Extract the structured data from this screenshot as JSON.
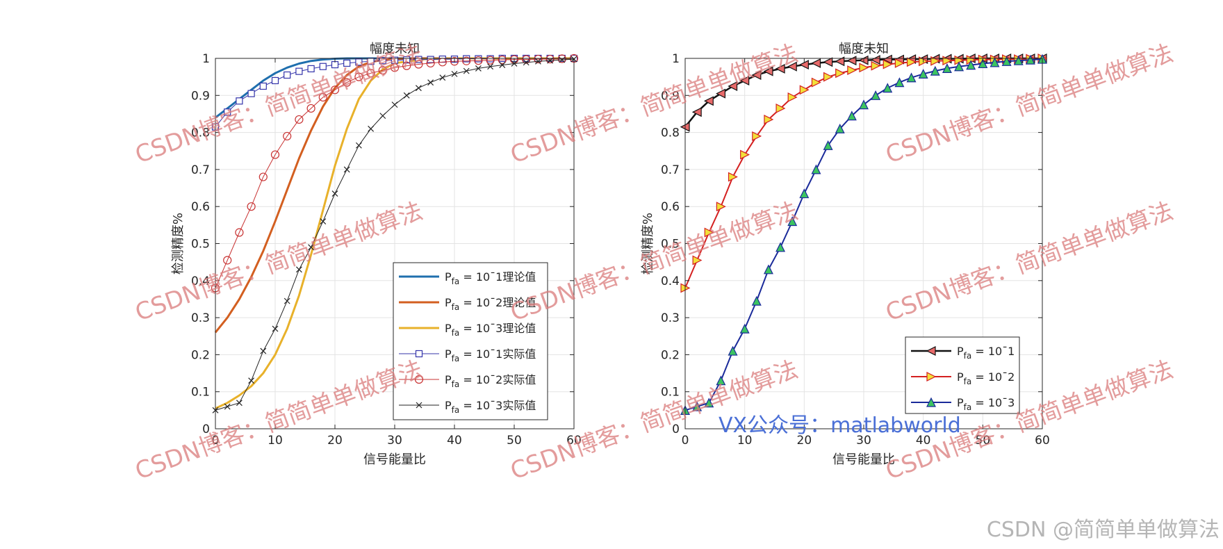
{
  "watermarks": {
    "diagonal": "CSDN博客：简简单单做算法",
    "center": "VX公众号：matlabworld",
    "bottom_right": "CSDN @简简单单做算法"
  },
  "chart_data": [
    {
      "type": "line",
      "title": "幅度未知",
      "xlabel": "信号能量比",
      "ylabel": "检测精度%",
      "xlim": [
        0,
        60
      ],
      "ylim": [
        0,
        1
      ],
      "xticks": [
        "0",
        "10",
        "20",
        "30",
        "40",
        "50",
        "60"
      ],
      "yticks": [
        "0",
        "0.1",
        "0.2",
        "0.3",
        "0.4",
        "0.5",
        "0.6",
        "0.7",
        "0.8",
        "0.9",
        "1"
      ],
      "grid": true,
      "legend_position": "bottom-right",
      "series": [
        {
          "name": "P_fa = 10^-1理论值",
          "legend_base": "P",
          "legend_sub": "fa",
          "legend_rest": " = 10ˉ1理论值",
          "color": "#1f6fae",
          "marker": "none",
          "lineWidth": 3,
          "x": [
            0,
            2,
            4,
            6,
            8,
            10,
            12,
            14,
            16,
            18,
            20,
            22,
            24,
            26,
            28,
            30,
            35,
            40,
            50,
            60
          ],
          "y": [
            0.84,
            0.865,
            0.89,
            0.915,
            0.94,
            0.96,
            0.975,
            0.986,
            0.993,
            0.997,
            0.999,
            1,
            1,
            1,
            1,
            1,
            1,
            1,
            1,
            1
          ]
        },
        {
          "name": "P_fa = 10^-2理论值",
          "legend_base": "P",
          "legend_sub": "fa",
          "legend_rest": " = 10ˉ2理论值",
          "color": "#d35f20",
          "marker": "none",
          "lineWidth": 3,
          "x": [
            0,
            2,
            4,
            6,
            8,
            10,
            12,
            14,
            16,
            18,
            20,
            22,
            24,
            26,
            28,
            30,
            35,
            40,
            50,
            60
          ],
          "y": [
            0.26,
            0.3,
            0.35,
            0.41,
            0.48,
            0.56,
            0.645,
            0.73,
            0.805,
            0.87,
            0.92,
            0.955,
            0.978,
            0.99,
            0.996,
            0.999,
            1,
            1,
            1,
            1
          ]
        },
        {
          "name": "P_fa = 10^-3理论值",
          "legend_base": "P",
          "legend_sub": "fa",
          "legend_rest": " = 10ˉ3理论值",
          "color": "#e8b12a",
          "marker": "none",
          "lineWidth": 3,
          "x": [
            0,
            2,
            4,
            6,
            8,
            10,
            12,
            14,
            16,
            18,
            20,
            22,
            24,
            26,
            28,
            30,
            35,
            40,
            50,
            60
          ],
          "y": [
            0.055,
            0.07,
            0.09,
            0.115,
            0.15,
            0.2,
            0.27,
            0.36,
            0.47,
            0.59,
            0.71,
            0.81,
            0.89,
            0.94,
            0.97,
            0.987,
            0.998,
            1,
            1,
            1
          ]
        },
        {
          "name": "P_fa = 10^-1实际值",
          "legend_base": "P",
          "legend_sub": "fa",
          "legend_rest": " = 10ˉ1实际值",
          "color": "#3333aa",
          "marker": "square",
          "lineWidth": 1,
          "x": [
            0,
            2,
            4,
            6,
            8,
            10,
            12,
            14,
            16,
            18,
            20,
            22,
            24,
            26,
            28,
            30,
            32,
            34,
            36,
            38,
            40,
            42,
            44,
            46,
            48,
            50,
            52,
            54,
            56,
            58,
            60
          ],
          "y": [
            0.815,
            0.855,
            0.885,
            0.905,
            0.925,
            0.94,
            0.955,
            0.965,
            0.972,
            0.978,
            0.983,
            0.987,
            0.99,
            0.992,
            0.994,
            0.995,
            0.996,
            0.997,
            0.997,
            0.998,
            0.998,
            0.999,
            0.999,
            0.999,
            1,
            1,
            1,
            1,
            1,
            1,
            1
          ]
        },
        {
          "name": "P_fa = 10^-2实际值",
          "legend_base": "P",
          "legend_sub": "fa",
          "legend_rest": " = 10ˉ2实际值",
          "color": "#c83232",
          "marker": "circle",
          "lineWidth": 1,
          "x": [
            0,
            2,
            4,
            6,
            8,
            10,
            12,
            14,
            16,
            18,
            20,
            22,
            24,
            26,
            28,
            30,
            32,
            34,
            36,
            38,
            40,
            42,
            44,
            46,
            48,
            50,
            52,
            54,
            56,
            58,
            60
          ],
          "y": [
            0.38,
            0.455,
            0.53,
            0.6,
            0.68,
            0.74,
            0.79,
            0.835,
            0.865,
            0.895,
            0.915,
            0.935,
            0.95,
            0.96,
            0.968,
            0.975,
            0.98,
            0.984,
            0.987,
            0.99,
            0.992,
            0.993,
            0.994,
            0.995,
            0.996,
            0.997,
            0.997,
            0.998,
            0.998,
            0.999,
            1
          ]
        },
        {
          "name": "P_fa = 10^-3实际值",
          "legend_base": "P",
          "legend_sub": "fa",
          "legend_rest": " = 10ˉ3实际值",
          "color": "#222222",
          "marker": "cross",
          "lineWidth": 1,
          "x": [
            0,
            2,
            4,
            6,
            8,
            10,
            12,
            14,
            16,
            18,
            20,
            22,
            24,
            26,
            28,
            30,
            32,
            34,
            36,
            38,
            40,
            42,
            44,
            46,
            48,
            50,
            52,
            54,
            56,
            58,
            60
          ],
          "y": [
            0.05,
            0.06,
            0.07,
            0.13,
            0.21,
            0.27,
            0.345,
            0.43,
            0.49,
            0.56,
            0.635,
            0.7,
            0.765,
            0.81,
            0.845,
            0.875,
            0.9,
            0.92,
            0.935,
            0.948,
            0.958,
            0.966,
            0.973,
            0.978,
            0.982,
            0.986,
            0.989,
            0.992,
            0.994,
            0.996,
            0.998
          ]
        }
      ]
    },
    {
      "type": "line",
      "title": "幅度未知",
      "xlabel": "信号能量比",
      "ylabel": "检测精度%",
      "xlim": [
        0,
        60
      ],
      "ylim": [
        0,
        1
      ],
      "xticks": [
        "0",
        "10",
        "20",
        "30",
        "40",
        "50",
        "60"
      ],
      "yticks": [
        "0",
        "0.1",
        "0.2",
        "0.3",
        "0.4",
        "0.5",
        "0.6",
        "0.7",
        "0.8",
        "0.9",
        "1"
      ],
      "grid": true,
      "legend_position": "bottom-right",
      "series": [
        {
          "name": "P_fa = 10^-1",
          "legend_base": "P",
          "legend_sub": "fa",
          "legend_rest": " = 10ˉ1",
          "color": "#111111",
          "markerFill": "#e86a6a",
          "marker": "triangle-left",
          "lineWidth": 2.5,
          "x": [
            0,
            2,
            4,
            6,
            8,
            10,
            12,
            14,
            16,
            18,
            20,
            22,
            24,
            26,
            28,
            30,
            32,
            34,
            36,
            38,
            40,
            42,
            44,
            46,
            48,
            50,
            52,
            54,
            56,
            58,
            60
          ],
          "y": [
            0.815,
            0.855,
            0.885,
            0.905,
            0.925,
            0.94,
            0.955,
            0.965,
            0.972,
            0.978,
            0.983,
            0.987,
            0.99,
            0.992,
            0.994,
            0.995,
            0.996,
            0.997,
            0.997,
            0.998,
            0.998,
            0.999,
            0.999,
            0.999,
            1,
            1,
            1,
            1,
            1,
            1,
            1
          ]
        },
        {
          "name": "P_fa = 10^-2",
          "legend_base": "P",
          "legend_sub": "fa",
          "legend_rest": " = 10ˉ2",
          "color": "#d42020",
          "markerFill": "#f2e03a",
          "marker": "triangle-right",
          "lineWidth": 2,
          "x": [
            0,
            2,
            4,
            6,
            8,
            10,
            12,
            14,
            16,
            18,
            20,
            22,
            24,
            26,
            28,
            30,
            32,
            34,
            36,
            38,
            40,
            42,
            44,
            46,
            48,
            50,
            52,
            54,
            56,
            58,
            60
          ],
          "y": [
            0.38,
            0.455,
            0.53,
            0.6,
            0.68,
            0.74,
            0.79,
            0.835,
            0.865,
            0.895,
            0.915,
            0.935,
            0.95,
            0.96,
            0.968,
            0.975,
            0.98,
            0.984,
            0.987,
            0.99,
            0.992,
            0.993,
            0.994,
            0.995,
            0.996,
            0.997,
            0.997,
            0.998,
            0.998,
            0.999,
            1
          ]
        },
        {
          "name": "P_fa = 10^-3",
          "legend_base": "P",
          "legend_sub": "fa",
          "legend_rest": " = 10ˉ3",
          "color": "#1a2a9a",
          "markerFill": "#3cc460",
          "marker": "triangle-up",
          "lineWidth": 2,
          "x": [
            0,
            2,
            4,
            6,
            8,
            10,
            12,
            14,
            16,
            18,
            20,
            22,
            24,
            26,
            28,
            30,
            32,
            34,
            36,
            38,
            40,
            42,
            44,
            46,
            48,
            50,
            52,
            54,
            56,
            58,
            60
          ],
          "y": [
            0.05,
            0.06,
            0.07,
            0.13,
            0.21,
            0.27,
            0.345,
            0.43,
            0.49,
            0.56,
            0.635,
            0.7,
            0.765,
            0.81,
            0.845,
            0.875,
            0.9,
            0.92,
            0.935,
            0.948,
            0.958,
            0.966,
            0.973,
            0.978,
            0.982,
            0.986,
            0.989,
            0.992,
            0.994,
            0.996,
            0.998
          ]
        }
      ]
    }
  ]
}
